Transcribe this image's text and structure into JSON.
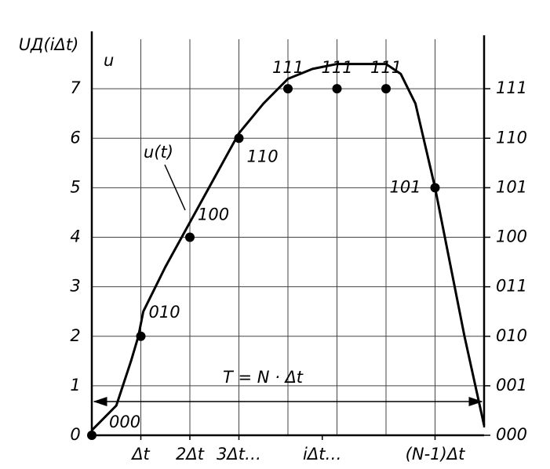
{
  "chart_data": {
    "type": "line",
    "ylabel": "UД(iΔt)",
    "axis_symbol": "u",
    "annotation": "T = N · Δt",
    "xlim": [
      0,
      8
    ],
    "ylim": [
      0,
      8
    ],
    "y2lim": [
      0,
      8
    ],
    "grid": true,
    "xticks": [
      {
        "value": 1,
        "label": "Δt"
      },
      {
        "value": 2,
        "label": "2Δt"
      },
      {
        "value": 3,
        "label": "3Δt…"
      },
      {
        "value": 4.7,
        "label": "iΔt…"
      },
      {
        "value": 7,
        "label": "(N-1)Δt"
      }
    ],
    "yticks": [
      0,
      1,
      2,
      3,
      4,
      5,
      6,
      7
    ],
    "y2ticks": [
      {
        "value": 0,
        "label": "000"
      },
      {
        "value": 1,
        "label": "001"
      },
      {
        "value": 2,
        "label": "010"
      },
      {
        "value": 3,
        "label": "011"
      },
      {
        "value": 4,
        "label": "100"
      },
      {
        "value": 5,
        "label": "101"
      },
      {
        "value": 6,
        "label": "110"
      },
      {
        "value": 7,
        "label": "111"
      }
    ],
    "series": [
      {
        "name": "u(t)",
        "color": "#000000",
        "x": [
          0,
          0.5,
          0.8,
          0.95,
          1.05,
          1.5,
          2,
          2.5,
          3,
          3.5,
          4,
          4.5,
          5,
          5.5,
          6,
          6.3,
          6.6,
          7,
          7.3,
          7.6,
          8
        ],
        "values": [
          0.1,
          0.6,
          1.5,
          2.0,
          2.5,
          3.4,
          4.3,
          5.2,
          6.1,
          6.7,
          7.2,
          7.4,
          7.5,
          7.5,
          7.5,
          7.3,
          6.7,
          5.0,
          3.5,
          2.0,
          0.2
        ]
      },
      {
        "color": "#000000",
        "x": [
          0,
          1,
          2,
          3,
          4,
          5,
          6,
          7
        ],
        "values": [
          0,
          2,
          4,
          6,
          7,
          7,
          7,
          5
        ],
        "value_labels": [
          "000",
          "010",
          "100",
          "110",
          "111",
          "111",
          "111",
          "101"
        ]
      }
    ]
  }
}
